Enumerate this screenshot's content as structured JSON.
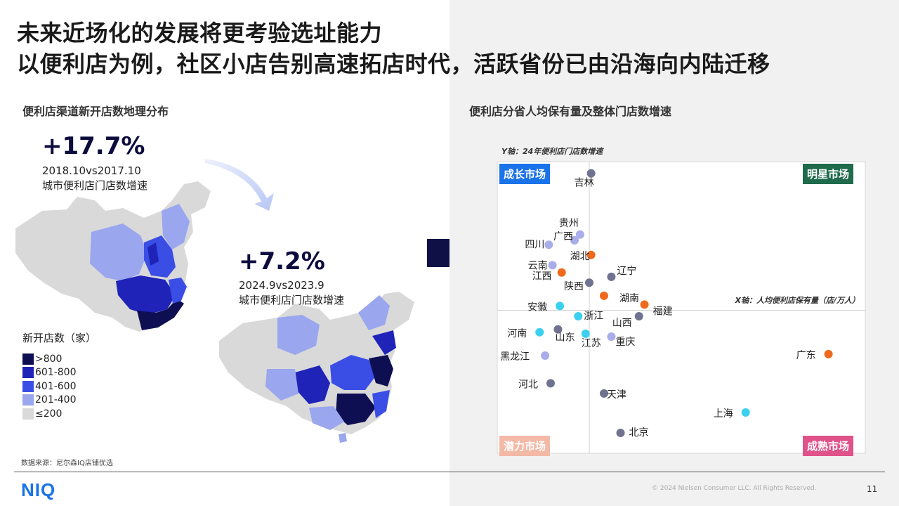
{
  "title_line1": "未来近场化的发展将更考验选址能力",
  "title_line2": "以便利店为例，社区小店告别高速拓店时代，活跃省份已由沿海向内陆迁移",
  "left": {
    "section_title": "便利店渠道新开店数地理分布",
    "stat1": {
      "value": "+17.7%",
      "period": "2018.10vs2017.10",
      "label": "城市便利店门店数增速"
    },
    "stat2": {
      "value": "+7.2%",
      "period": "2024.9vs2023.9",
      "label": "城市便利店门店数增速"
    },
    "legend": {
      "title": "新开店数（家）",
      "items": [
        {
          "label": ">800",
          "color": "#0e0e52"
        },
        {
          "label": "601-800",
          "color": "#1f23b8"
        },
        {
          "label": "401-600",
          "color": "#3a4ee6"
        },
        {
          "label": "201-400",
          "color": "#9aa6ee"
        },
        {
          "label": "≤200",
          "color": "#d9d9d9"
        }
      ]
    },
    "source": "数据来源：尼尔森IQ店铺优选"
  },
  "right": {
    "section_title": "便利店分省人均保有量及整体门店数增速",
    "y_axis_note": "Y轴：24年便利店门店数增速",
    "x_axis_note": "X轴：人均便利店保有量（店/万人）",
    "quadrants": {
      "growth": {
        "label": "成长市场",
        "color": "#1a73e8"
      },
      "star": {
        "label": "明星市场",
        "color": "#1f6b4b"
      },
      "potential": {
        "label": "潜力市场",
        "color": "#f3b9a6"
      },
      "mature": {
        "label": "成熟市场",
        "color": "#e0528a"
      }
    }
  },
  "chart_data": {
    "type": "scatter",
    "title": "便利店分省人均保有量及整体门店数增速",
    "xlabel": "X轴：人均便利店保有量（店/万人）",
    "ylabel": "Y轴：24年便利店门店数增速",
    "xlim": [
      0,
      100
    ],
    "ylim": [
      0,
      100
    ],
    "axis_cross": {
      "x": 25,
      "y": 49
    },
    "grid": false,
    "legend": "none",
    "point_colors": {
      "dark": "#6f7390",
      "light": "#a9adea",
      "orange": "#ef6a1c",
      "cyan": "#3cd0ef"
    },
    "points": [
      {
        "name": "吉林",
        "x": 25.5,
        "y": 96,
        "color": "dark"
      },
      {
        "name": "贵州",
        "x": 22.5,
        "y": 75,
        "color": "light"
      },
      {
        "name": "广西",
        "x": 21,
        "y": 73,
        "color": "light"
      },
      {
        "name": "四川",
        "x": 14,
        "y": 71.5,
        "color": "light"
      },
      {
        "name": "湖北",
        "x": 25.5,
        "y": 68,
        "color": "orange"
      },
      {
        "name": "云南",
        "x": 15,
        "y": 64.5,
        "color": "light"
      },
      {
        "name": "辽宁",
        "x": 31,
        "y": 60.5,
        "color": "dark"
      },
      {
        "name": "江西",
        "x": 17.5,
        "y": 62,
        "color": "orange"
      },
      {
        "name": "陕西",
        "x": 25,
        "y": 58.5,
        "color": "dark"
      },
      {
        "name": "湖南",
        "x": 29,
        "y": 54,
        "color": "orange"
      },
      {
        "name": "安徽",
        "x": 17,
        "y": 50.5,
        "color": "cyan"
      },
      {
        "name": "福建",
        "x": 40,
        "y": 51,
        "color": "orange"
      },
      {
        "name": "浙江",
        "x": 22,
        "y": 47,
        "color": "cyan"
      },
      {
        "name": "山西",
        "x": 38.5,
        "y": 47,
        "color": "dark"
      },
      {
        "name": "河南",
        "x": 11.5,
        "y": 41.5,
        "color": "cyan"
      },
      {
        "name": "山东",
        "x": 16.5,
        "y": 42.5,
        "color": "dark"
      },
      {
        "name": "江苏",
        "x": 24,
        "y": 41,
        "color": "cyan"
      },
      {
        "name": "重庆",
        "x": 31,
        "y": 40,
        "color": "light"
      },
      {
        "name": "黑龙江",
        "x": 13,
        "y": 33.5,
        "color": "light"
      },
      {
        "name": "广东",
        "x": 90,
        "y": 34,
        "color": "orange"
      },
      {
        "name": "河北",
        "x": 14.5,
        "y": 24,
        "color": "dark"
      },
      {
        "name": "天津",
        "x": 29,
        "y": 20.5,
        "color": "dark"
      },
      {
        "name": "上海",
        "x": 67.5,
        "y": 14,
        "color": "cyan"
      },
      {
        "name": "北京",
        "x": 33.5,
        "y": 7,
        "color": "dark"
      }
    ]
  },
  "footer": {
    "logo": "NIQ",
    "copyright": "© 2024 Nielsen Consumer LLC. All Rights Reserved.",
    "page": "11"
  }
}
